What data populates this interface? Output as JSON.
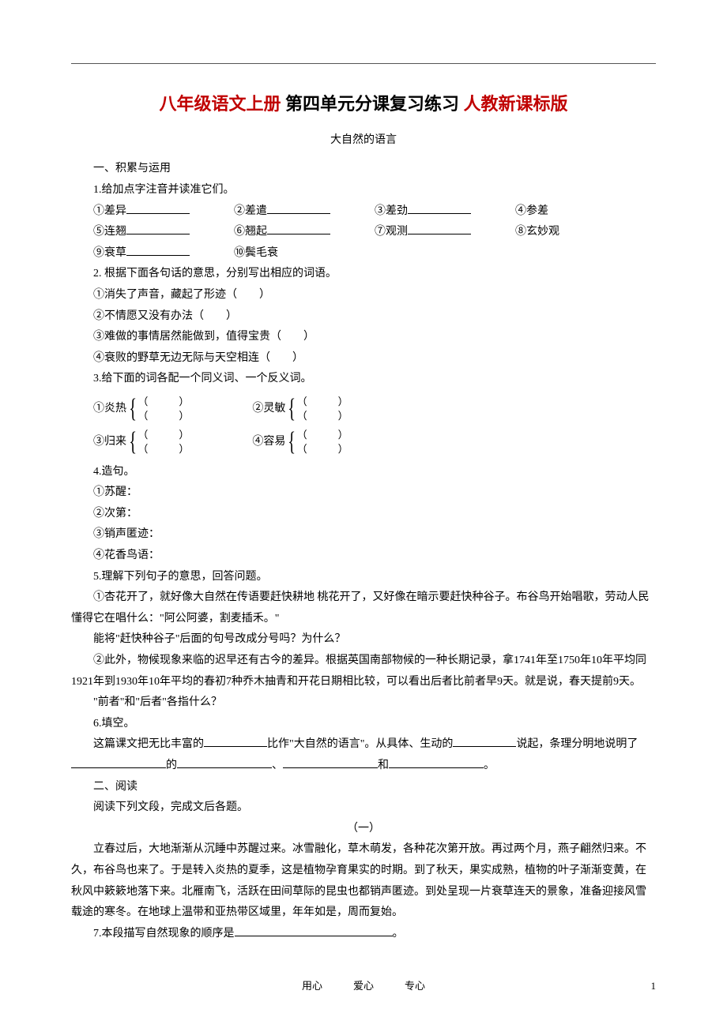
{
  "title_parts": {
    "p1_red": "八年级语文上册",
    "p2_black": " 第四单元分课复习练习 ",
    "p3_red": "人教新课标版"
  },
  "subtitle": "大自然的语言",
  "sect1": {
    "heading": "一、积累与运用",
    "q1": {
      "stem": "1.给加点字注音并读准它们。",
      "items": [
        "①差异",
        "②差遣",
        "③差劲",
        "④参差",
        "⑤连翘",
        "⑥翘起",
        "⑦观测",
        "⑧玄妙观",
        "⑨衰草",
        "⑩鬓毛衰"
      ]
    },
    "q2": {
      "stem": "2. 根据下面各句话的意思，分别写出相应的词语。",
      "items": [
        "①消失了声音，藏起了形迹（　　）",
        "②不情愿又没有办法（　　）",
        "③难做的事情居然能做到，值得宝贵（　　）",
        "④衰败的野草无边无际与天空相连（　　）"
      ]
    },
    "q3": {
      "stem": "3.给下面的词各配一个同义词、一个反义词。",
      "pairs": [
        "①炎热",
        "②灵敏",
        "③归来",
        "④容易"
      ]
    },
    "q4": {
      "stem": "4.造句。",
      "items": [
        "①苏醒：",
        "②次第：",
        "③销声匿迹：",
        "④花香鸟语："
      ]
    },
    "q5": {
      "stem": "5.理解下列句子的意思，回答问题。",
      "p1": "①杏花开了，就好像大自然在传语要赶快耕地 桃花开了，又好像在暗示要赶快种谷子。布谷鸟开始唱歌，劳动人民懂得它在唱什么：\"阿公阿婆，割麦插禾。\"",
      "p1q": "能将\"赶快种谷子\"后面的句号改成分号吗？为什么？",
      "p2": "②此外，物候现象来临的迟早还有古今的差异。根据英国南部物候的一种长期记录，拿1741年至1750年10年平均同1921年到1930年10年平均的春初7种乔木抽青和开花日期相比较，可以看出后者比前者早9天。就是说，春天提前9天。",
      "p2q": "\"前者\"和\"后者\"各指什么？"
    },
    "q6": {
      "stem": "6.填空。",
      "text_a": "这篇课文把无比丰富的",
      "text_b": "比作\"大自然的语言\"。从具体、生动的",
      "text_c": "说起，条理分明地说明了",
      "text_d": "的",
      "text_e": "、",
      "text_f": "和",
      "text_g": "。"
    }
  },
  "sect2": {
    "heading": "二、阅读",
    "lead": "阅读下列文段，完成文后各题。",
    "part_label": "（一）",
    "passage": "立春过后，大地渐渐从沉睡中苏醒过来。冰雪融化，草木萌发，各种花次第开放。再过两个月，燕子翩然归来。不久，布谷鸟也来了。于是转入炎热的夏季，这是植物孕育果实的时期。到了秋天，果实成熟，植物的叶子渐渐变黄，在秋风中簌簌地落下来。北雁南飞，活跃在田间草际的昆虫也都销声匿迹。到处呈现一片衰草连天的景象，准备迎接风雪载途的寒冬。在地球上温带和亚热带区域里，年年如是，周而复始。",
    "q7": "7.本段描写自然现象的顺序是",
    "q7_end": "。"
  },
  "footer": {
    "text": "用心　　　爱心　　　专心",
    "page": "1"
  }
}
